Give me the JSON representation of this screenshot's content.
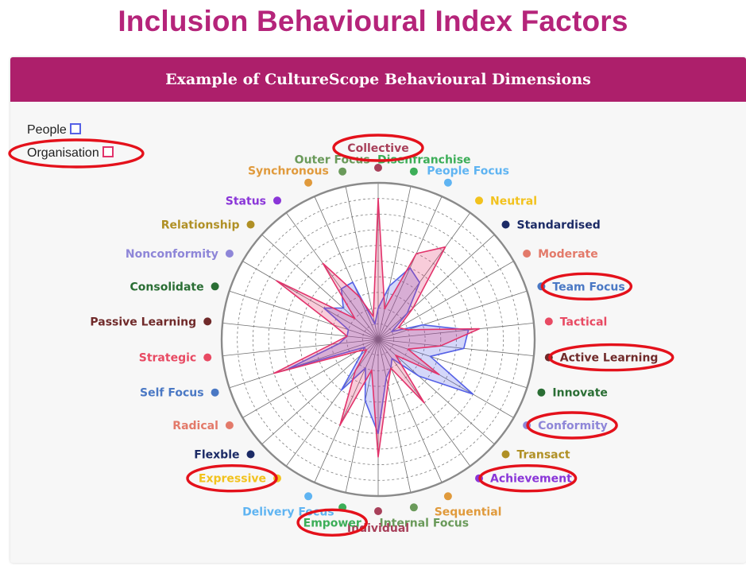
{
  "page": {
    "title": "Inclusion Behavioural Index Factors",
    "card_title": "Example of CultureScope Behavioural Dimensions"
  },
  "legend": {
    "people": {
      "label": "People",
      "color": "#5561e6"
    },
    "organisation": {
      "label": "Organisation",
      "color": "#e2336b"
    }
  },
  "highlight_color": "#e4111b",
  "chart_data": {
    "type": "radar",
    "grid": true,
    "legend_position": "top-left",
    "rlim": [
      0,
      10
    ],
    "axes": [
      {
        "label": "Collective",
        "color": "#a8405a",
        "highlighted": true
      },
      {
        "label": "Disenfranchise",
        "color": "#3cae58",
        "highlighted": false
      },
      {
        "label": "People Focus",
        "color": "#5fb4f2",
        "highlighted": false
      },
      {
        "label": "Neutral",
        "color": "#f2c21d",
        "highlighted": false
      },
      {
        "label": "Standardised",
        "color": "#1c2b66",
        "highlighted": false
      },
      {
        "label": "Moderate",
        "color": "#e37a6a",
        "highlighted": false
      },
      {
        "label": "Team Focus",
        "color": "#4a78c4",
        "highlighted": true
      },
      {
        "label": "Tactical",
        "color": "#e84a63",
        "highlighted": false
      },
      {
        "label": "Active Learning",
        "color": "#702a2a",
        "highlighted": true
      },
      {
        "label": "Innovate",
        "color": "#2a6e34",
        "highlighted": false
      },
      {
        "label": "Conformity",
        "color": "#8e86d8",
        "highlighted": true
      },
      {
        "label": "Transact",
        "color": "#b09025",
        "highlighted": false
      },
      {
        "label": "Achievement",
        "color": "#8a36d8",
        "highlighted": true
      },
      {
        "label": "Sequential",
        "color": "#e09a3c",
        "highlighted": false
      },
      {
        "label": "Internal Focus",
        "color": "#6a9a5a",
        "highlighted": false
      },
      {
        "label": "Individual",
        "color": "#a8405a",
        "highlighted": false
      },
      {
        "label": "Empower",
        "color": "#3cae58",
        "highlighted": true
      },
      {
        "label": "Delivery Focus",
        "color": "#5fb4f2",
        "highlighted": false
      },
      {
        "label": "Expressive",
        "color": "#f2c21d",
        "highlighted": true
      },
      {
        "label": "Flexble",
        "color": "#1c2b66",
        "highlighted": false
      },
      {
        "label": "Radical",
        "color": "#e37a6a",
        "highlighted": false
      },
      {
        "label": "Self Focus",
        "color": "#4a78c4",
        "highlighted": false
      },
      {
        "label": "Strategic",
        "color": "#e84a63",
        "highlighted": false
      },
      {
        "label": "Passive Learning",
        "color": "#702a2a",
        "highlighted": false
      },
      {
        "label": "Consolidate",
        "color": "#2a6e34",
        "highlighted": false
      },
      {
        "label": "Nonconformity",
        "color": "#8e86d8",
        "highlighted": false
      },
      {
        "label": "Relationship",
        "color": "#b09025",
        "highlighted": false
      },
      {
        "label": "Status",
        "color": "#8a36d8",
        "highlighted": false
      },
      {
        "label": "Synchronous",
        "color": "#e09a3c",
        "highlighted": false
      },
      {
        "label": "Outer Focus",
        "color": "#6a9a5a",
        "highlighted": false
      }
    ],
    "series": [
      {
        "name": "People",
        "color": "#5561e6",
        "values": [
          2.0,
          3.5,
          5.0,
          4.5,
          2.5,
          1.0,
          3.0,
          5.8,
          5.5,
          3.5,
          7.0,
          3.5,
          1.5,
          2.0,
          2.5,
          6.0,
          4.0,
          2.0,
          4.0,
          1.5,
          1.0,
          6.0,
          2.5,
          2.0,
          2.0,
          4.0,
          3.0,
          4.0,
          4.0,
          1.0
        ]
      },
      {
        "name": "Organisation",
        "color": "#e2336b",
        "values": [
          9.0,
          2.0,
          6.0,
          7.3,
          3.0,
          1.5,
          2.0,
          6.5,
          4.0,
          2.0,
          4.5,
          1.5,
          5.0,
          2.0,
          3.0,
          7.5,
          2.0,
          6.0,
          2.5,
          1.0,
          1.5,
          7.0,
          3.0,
          2.0,
          3.0,
          7.5,
          2.0,
          6.0,
          3.0,
          1.5
        ]
      }
    ]
  }
}
